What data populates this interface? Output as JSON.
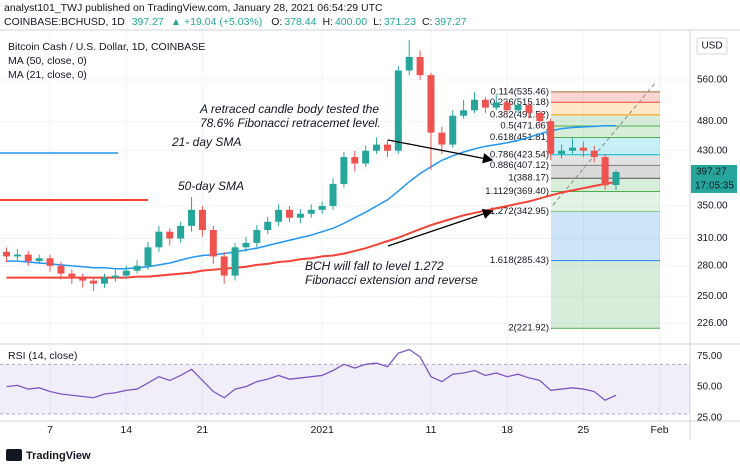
{
  "header": {
    "author_line": "analyst101_TWJ published on TradingView.com, January 28, 2021 06:54:29 UTC",
    "symbol": "COINBASE:BCHUSD, 1D",
    "price": "397.27",
    "change": "▲ +19.04 (+5.03%)",
    "ohlc": [
      {
        "key": "O:",
        "value": "378.44"
      },
      {
        "key": "H:",
        "value": "400.00"
      },
      {
        "key": "L:",
        "value": "371.23"
      },
      {
        "key": "C:",
        "value": "397.27"
      }
    ],
    "chart_title": "Bitcoin Cash / U.S. Dollar, 1D, COINBASE",
    "ma_labels": [
      "MA (50, close, 0)",
      "MA (21, close, 0)"
    ],
    "currency": "USD",
    "footer": "TradingView"
  },
  "chart_data": {
    "type": "candlestick",
    "x": [
      0,
      1,
      2,
      3,
      4,
      5,
      6,
      7,
      8,
      9,
      10,
      11,
      12,
      13,
      14,
      15,
      16,
      17,
      18,
      19,
      20,
      21,
      22,
      23,
      24,
      25,
      26,
      27,
      28,
      29,
      30,
      31,
      32,
      33,
      34,
      35,
      36,
      37,
      38,
      39,
      40,
      41,
      42,
      43,
      44,
      45,
      46,
      47,
      48,
      49,
      50,
      51,
      52,
      53,
      54,
      55,
      56
    ],
    "xlim": [
      -0.6,
      62.8
    ],
    "xticks": [
      {
        "value": 4,
        "label": "7"
      },
      {
        "value": 11,
        "label": "14"
      },
      {
        "value": 18,
        "label": "21"
      },
      {
        "value": 29,
        "label": "2021"
      },
      {
        "value": 39,
        "label": "11"
      },
      {
        "value": 46,
        "label": "18"
      },
      {
        "value": 53,
        "label": "25"
      },
      {
        "value": 60,
        "label": "Feb"
      }
    ],
    "ylim": [
      210,
      662
    ],
    "log_scale": true,
    "yticks": [
      {
        "value": 560,
        "label": "560.00"
      },
      {
        "value": 480,
        "label": "480.00"
      },
      {
        "value": 430,
        "label": "430.00"
      },
      {
        "value": 350,
        "label": "350.00"
      },
      {
        "value": 310,
        "label": "310.00"
      },
      {
        "value": 280,
        "label": "280.00"
      },
      {
        "value": 250,
        "label": "250.00"
      },
      {
        "value": 226,
        "label": "226.00"
      }
    ],
    "grid": true,
    "up_color": "#26a69a",
    "down_color": "#ef5350",
    "candles": {
      "open": [
        295,
        290,
        292,
        285,
        288,
        280,
        272,
        268,
        265,
        262,
        268,
        270,
        275,
        280,
        300,
        318,
        310,
        325,
        345,
        320,
        290,
        270,
        300,
        305,
        320,
        330,
        345,
        335,
        340,
        345,
        350,
        380,
        420,
        410,
        430,
        440,
        430,
        580,
        610,
        570,
        460,
        440,
        490,
        500,
        520,
        505,
        515,
        500,
        510,
        495,
        480,
        425,
        430,
        435,
        430,
        420,
        378.44
      ],
      "high": [
        300,
        298,
        296,
        292,
        292,
        284,
        276,
        272,
        268,
        272,
        276,
        280,
        286,
        306,
        325,
        322,
        330,
        362,
        350,
        325,
        295,
        305,
        312,
        326,
        336,
        352,
        350,
        346,
        352,
        356,
        388,
        428,
        430,
        438,
        452,
        448,
        590,
        650,
        625,
        575,
        470,
        500,
        520,
        535,
        525,
        530,
        520,
        520,
        515,
        500,
        485,
        440,
        450,
        445,
        438,
        425,
        400
      ],
      "low": [
        284,
        286,
        280,
        282,
        274,
        266,
        262,
        258,
        255,
        258,
        264,
        268,
        272,
        276,
        295,
        302,
        305,
        318,
        312,
        282,
        262,
        265,
        295,
        300,
        315,
        325,
        330,
        328,
        335,
        340,
        345,
        375,
        398,
        405,
        425,
        420,
        425,
        570,
        560,
        400,
        425,
        435,
        485,
        495,
        495,
        500,
        490,
        495,
        485,
        470,
        415,
        418,
        425,
        420,
        412,
        372,
        371.23
      ],
      "close": [
        290,
        292,
        285,
        288,
        280,
        272,
        268,
        265,
        262,
        268,
        270,
        275,
        280,
        300,
        318,
        310,
        325,
        345,
        320,
        290,
        270,
        300,
        305,
        320,
        330,
        345,
        335,
        340,
        345,
        350,
        380,
        420,
        410,
        430,
        440,
        430,
        580,
        610,
        570,
        460,
        440,
        490,
        500,
        520,
        505,
        515,
        500,
        510,
        495,
        480,
        425,
        430,
        435,
        430,
        420,
        378,
        397.27
      ]
    },
    "series": [
      {
        "name": "50-day SMA",
        "color": "#f44336",
        "values": [
          268,
          268,
          268,
          268,
          268,
          268,
          268,
          268,
          268,
          268,
          268,
          268,
          269,
          269,
          270,
          271,
          272,
          273,
          275,
          276,
          277,
          278,
          279,
          281,
          282,
          284,
          285,
          287,
          288,
          290,
          291,
          293,
          296,
          299,
          303,
          307,
          311,
          316,
          321,
          326,
          330,
          334,
          338,
          341,
          344,
          347,
          350,
          353,
          356,
          360,
          364,
          368,
          371,
          374,
          377,
          380,
          383
        ]
      },
      {
        "name": "21- day SMA",
        "color": "#2196f3",
        "values": [
          285,
          285,
          284,
          283,
          282,
          281,
          280,
          279,
          278,
          278,
          277,
          277,
          278,
          279,
          281,
          283,
          286,
          289,
          291,
          292,
          293,
          295,
          297,
          299,
          302,
          305,
          308,
          311,
          314,
          318,
          322,
          328,
          335,
          342,
          350,
          358,
          370,
          383,
          395,
          405,
          415,
          422,
          428,
          433,
          437,
          440,
          443,
          447,
          452,
          458,
          463,
          467,
          469,
          470,
          471,
          472,
          472
        ]
      }
    ],
    "fib_levels": [
      {
        "price": 535.46,
        "label": "0.114(535.46)",
        "color": "#9c6b3c"
      },
      {
        "price": 515.18,
        "label": "0.236(515.18)",
        "color": "#f44336"
      },
      {
        "price": 491.52,
        "label": "0.382(491.52)",
        "color": "#ff9800"
      },
      {
        "price": 471.66,
        "label": "0.5(471.66)",
        "color": "#4caf50"
      },
      {
        "price": 451.81,
        "label": "0.618(451.81)",
        "color": "#4caf50"
      },
      {
        "price": 423.54,
        "label": "0.786(423.54)",
        "color": "#00bcd4"
      },
      {
        "price": 407.12,
        "label": "0.886(407.12)",
        "color": "#808080"
      },
      {
        "price": 388.17,
        "label": "1(388.17)",
        "color": "#555555"
      },
      {
        "price": 369.4,
        "label": "1.1129(369.40)",
        "color": "#4caf50"
      },
      {
        "price": 342.95,
        "label": "1.272(342.95)",
        "color": "#81c784"
      },
      {
        "price": 285.43,
        "label": "1.618(285.43)",
        "color": "#1e88e5"
      },
      {
        "price": 221.92,
        "label": "2(221.92)",
        "color": "#4caf50"
      }
    ],
    "annotations": [
      "A retraced candle body tested the",
      "78.6% Fibonacci retracemet level.",
      "BCH will fall to level 1.272",
      "Fibonacci extension and reverse"
    ],
    "price_tag": "397.27",
    "countdown": "17:05:35",
    "rsi": {
      "label": "RSI (14, close)",
      "color": "#7e57c2",
      "ylim": [
        25,
        84
      ],
      "band": [
        30,
        70
      ],
      "yticks": [
        {
          "value": 75,
          "label": "75.00"
        },
        {
          "value": 50,
          "label": "50.00"
        },
        {
          "value": 25,
          "label": "25.00"
        }
      ],
      "values": [
        52,
        53,
        50,
        51,
        48,
        46,
        45,
        44,
        43,
        46,
        47,
        49,
        50,
        55,
        60,
        57,
        61,
        66,
        57,
        48,
        43,
        50,
        52,
        56,
        58,
        61,
        58,
        59,
        60,
        61,
        65,
        70,
        67,
        70,
        71,
        68,
        79,
        82,
        76,
        60,
        56,
        62,
        63,
        65,
        61,
        63,
        60,
        62,
        59,
        57,
        49,
        50,
        51,
        50,
        48,
        41,
        45
      ]
    }
  }
}
